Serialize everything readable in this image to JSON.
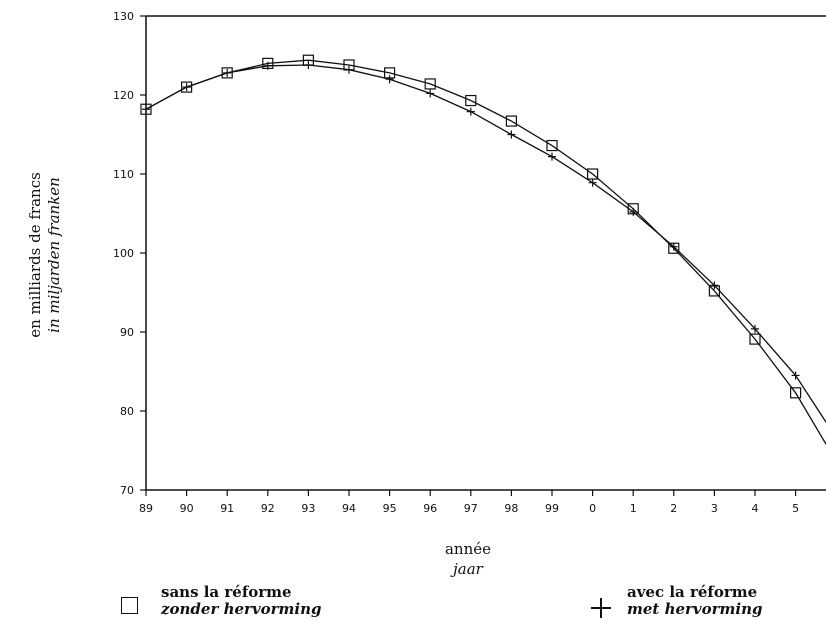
{
  "chart_data": {
    "type": "line",
    "ylabel": [
      "en milliards de francs",
      "in miljarden franken"
    ],
    "xlabel": [
      "année",
      "jaar"
    ],
    "ylim": [
      70,
      130
    ],
    "yticks": [
      70,
      80,
      90,
      100,
      110,
      120,
      130
    ],
    "categories": [
      "89",
      "90",
      "91",
      "92",
      "93",
      "94",
      "95",
      "96",
      "97",
      "98",
      "99",
      "0",
      "1",
      "2",
      "3",
      "4",
      "5"
    ],
    "grid": false,
    "series": [
      {
        "name": "sans la réforme / zonder hervorming",
        "marker": "square",
        "values": [
          118.2,
          121.0,
          122.8,
          124.0,
          124.4,
          123.8,
          122.8,
          121.4,
          119.3,
          116.7,
          113.6,
          110.0,
          105.6,
          100.6,
          95.2,
          89.1,
          82.3
        ]
      },
      {
        "name": "avec la réforme / met hervorming",
        "marker": "plus",
        "values": [
          118.2,
          121.0,
          122.8,
          123.7,
          123.8,
          123.2,
          122.0,
          120.2,
          117.9,
          115.0,
          112.2,
          108.9,
          105.2,
          100.8,
          95.9,
          90.4,
          84.5
        ]
      }
    ],
    "tail_values": {
      "sans la réforme": 75.8,
      "avec la réforme": 78.6
    }
  },
  "legend": {
    "sans": {
      "line1": "sans la réforme",
      "line2": "zonder hervorming"
    },
    "avec": {
      "line1": "avec la réforme",
      "line2": "met hervorming"
    }
  }
}
